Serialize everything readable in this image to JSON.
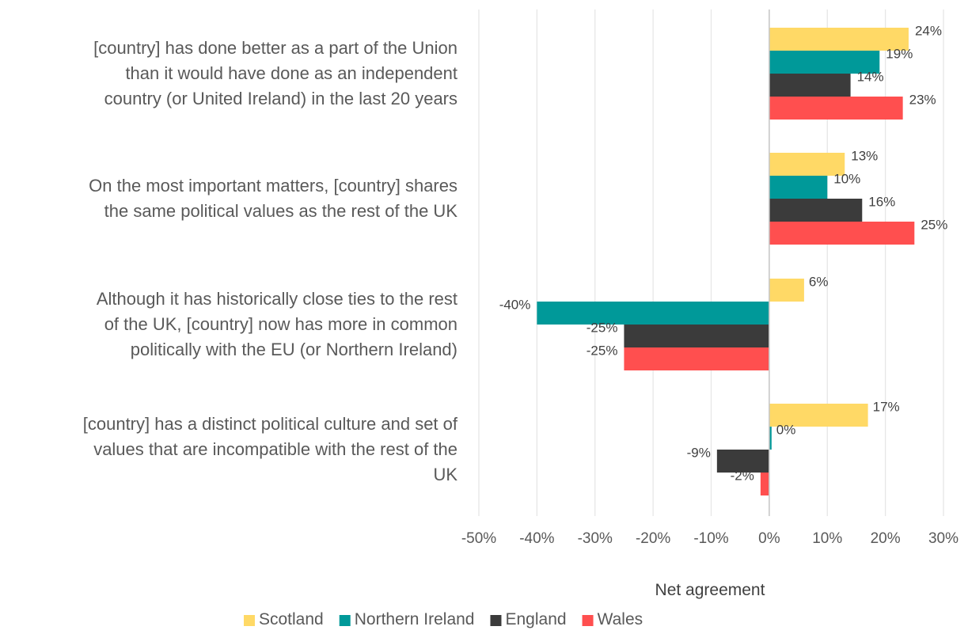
{
  "chart_data": {
    "type": "bar",
    "orientation": "horizontal",
    "categories": [
      [
        "[country] has done better as a part of the Union",
        "than it would have done as an independent",
        "country (or United Ireland) in the last 20 years"
      ],
      [
        "On the most important matters, [country] shares",
        "the same political values as the rest of the UK"
      ],
      [
        "Although it has historically close ties to the rest",
        "of the UK, [country] now has more in common",
        "politically with the EU (or Northern Ireland)"
      ],
      [
        "[country] has a distinct political culture and set of",
        "values that are incompatible with the rest of the",
        "UK"
      ]
    ],
    "series": [
      {
        "name": "Scotland",
        "color": "#FFD966",
        "values": [
          24,
          13,
          6,
          17
        ],
        "labels": [
          "24%",
          "13%",
          "6%",
          "17%"
        ]
      },
      {
        "name": "Northern Ireland",
        "color": "#009999",
        "values": [
          19,
          10,
          -40,
          0.4
        ],
        "labels": [
          "19%",
          "10%",
          "-40%",
          "0%"
        ]
      },
      {
        "name": "England",
        "color": "#3B3B3B",
        "values": [
          14,
          16,
          -25,
          -9
        ],
        "labels": [
          "14%",
          "16%",
          "-25%",
          "-9%"
        ]
      },
      {
        "name": "Wales",
        "color": "#FF4F4F",
        "values": [
          23,
          25,
          -25,
          -1.5
        ],
        "labels": [
          "23%",
          "25%",
          "-25%",
          "-2%"
        ]
      }
    ],
    "xlabel": "Net agreement",
    "ylabel": "",
    "title": "",
    "xlim": [
      -50,
      30
    ],
    "xticks": [
      -50,
      -40,
      -30,
      -20,
      -10,
      0,
      10,
      20,
      30
    ],
    "xtick_labels": [
      "-50%",
      "-40%",
      "-30%",
      "-20%",
      "-10%",
      "0%",
      "10%",
      "20%",
      "30%"
    ],
    "grid": "vertical",
    "legend_position": "bottom"
  }
}
